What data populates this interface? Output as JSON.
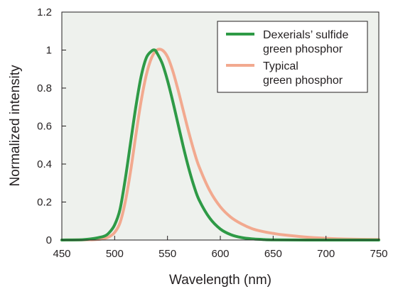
{
  "chart_data": {
    "type": "line",
    "title": "",
    "xlabel": "Wavelength (nm)",
    "ylabel": "Normalized intensity",
    "xlim": [
      450,
      750
    ],
    "ylim": [
      0,
      1.2
    ],
    "x_ticks": [
      "450",
      "500",
      "550",
      "600",
      "650",
      "700",
      "750"
    ],
    "y_ticks": [
      "0",
      "0.2",
      "0.4",
      "0.6",
      "0.8",
      "1",
      "1.2"
    ],
    "grid": false,
    "plot_background": "#eef1ed",
    "legend_position": "top-right",
    "series": [
      {
        "name": "Dexerials’ sulfide green phosphor",
        "legend_lines": [
          "Dexerials’ sulfide",
          "green phosphor"
        ],
        "color": "#2e9a46",
        "x": [
          450,
          470,
          480,
          490,
          495,
          500,
          505,
          510,
          515,
          520,
          525,
          530,
          535,
          538,
          540,
          545,
          550,
          555,
          560,
          565,
          570,
          575,
          580,
          590,
          600,
          610,
          620,
          630,
          640,
          650,
          700,
          750
        ],
        "y": [
          0,
          0.002,
          0.008,
          0.02,
          0.04,
          0.08,
          0.16,
          0.32,
          0.51,
          0.7,
          0.86,
          0.96,
          0.995,
          1.0,
          0.985,
          0.93,
          0.84,
          0.73,
          0.61,
          0.49,
          0.38,
          0.285,
          0.21,
          0.115,
          0.058,
          0.028,
          0.013,
          0.006,
          0.003,
          0.001,
          0.0,
          0.0
        ]
      },
      {
        "name": "Typical green phosphor",
        "legend_lines": [
          "Typical",
          "green phosphor"
        ],
        "color": "#f2a98f",
        "x": [
          450,
          480,
          490,
          495,
          500,
          505,
          510,
          515,
          520,
          525,
          530,
          535,
          540,
          545,
          550,
          555,
          560,
          565,
          570,
          575,
          580,
          590,
          600,
          610,
          620,
          630,
          640,
          650,
          660,
          680,
          700,
          720,
          750
        ],
        "y": [
          0,
          0.002,
          0.008,
          0.018,
          0.04,
          0.09,
          0.2,
          0.36,
          0.55,
          0.73,
          0.87,
          0.96,
          1.0,
          1.0,
          0.965,
          0.89,
          0.79,
          0.68,
          0.57,
          0.47,
          0.385,
          0.26,
          0.175,
          0.12,
          0.085,
          0.06,
          0.045,
          0.035,
          0.027,
          0.016,
          0.009,
          0.005,
          0.003
        ]
      }
    ]
  }
}
